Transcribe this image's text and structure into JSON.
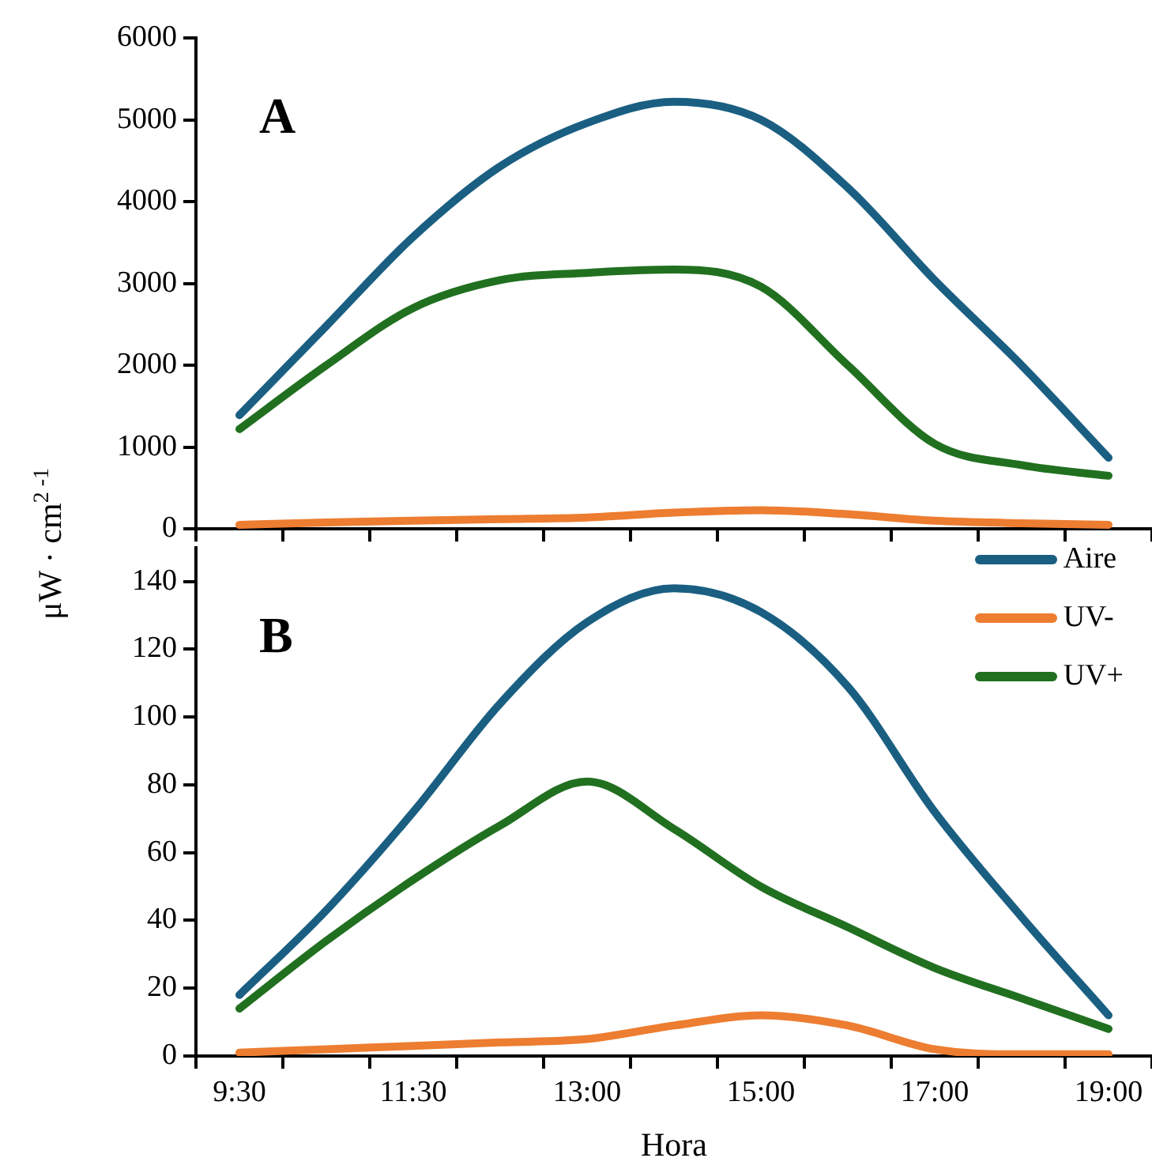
{
  "chart_data": [
    {
      "type": "line",
      "title": "A",
      "ylabel": "μW · cm$^{2 -1}$",
      "categories": [
        null,
        null,
        null,
        null,
        null,
        null,
        null,
        null,
        null,
        null,
        null
      ],
      "series": [
        {
          "color": "#1a5f82",
          "values": [
            1390,
            2480,
            3570,
            4430,
            4960,
            5220,
            5000,
            4170,
            3040,
            2000,
            870
          ]
        },
        {
          "color": "#ed7d31",
          "values": [
            50,
            80,
            100,
            120,
            140,
            200,
            230,
            180,
            100,
            70,
            50
          ]
        },
        {
          "color": "#217020",
          "values": [
            1220,
            2000,
            2700,
            3040,
            3130,
            3170,
            2960,
            2000,
            1040,
            780,
            650
          ]
        }
      ],
      "ylim": [
        0,
        6000
      ],
      "yticks": [
        0,
        1000,
        2000,
        3000,
        4000,
        5000,
        6000
      ],
      "tick_labels": "y",
      "grid": false,
      "legend": false,
      "marker": "none"
    },
    {
      "type": "line",
      "title": "B",
      "xlabel": "Hora",
      "categories": [
        "9:30",
        null,
        "11:30",
        null,
        "13:00",
        null,
        "15:00",
        null,
        "17:00",
        null,
        "19:00"
      ],
      "series": [
        {
          "name": "Aire",
          "color": "#1a5f82",
          "values": [
            18,
            43,
            72,
            104,
            128,
            138,
            131,
            109,
            72,
            41,
            12
          ]
        },
        {
          "name": "UV-",
          "color": "#ed7d31",
          "values": [
            1,
            2,
            3,
            4,
            5,
            9,
            12,
            9,
            2,
            0.5,
            0.5
          ]
        },
        {
          "name": "UV+",
          "color": "#217020",
          "values": [
            14,
            34,
            52,
            68,
            81,
            67,
            50,
            38,
            26,
            17,
            8
          ]
        }
      ],
      "ylim": [
        0,
        150
      ],
      "yticks": [
        0,
        20,
        40,
        60,
        80,
        100,
        120,
        140
      ],
      "legend": "top right",
      "grid": false,
      "marker": "none"
    }
  ]
}
